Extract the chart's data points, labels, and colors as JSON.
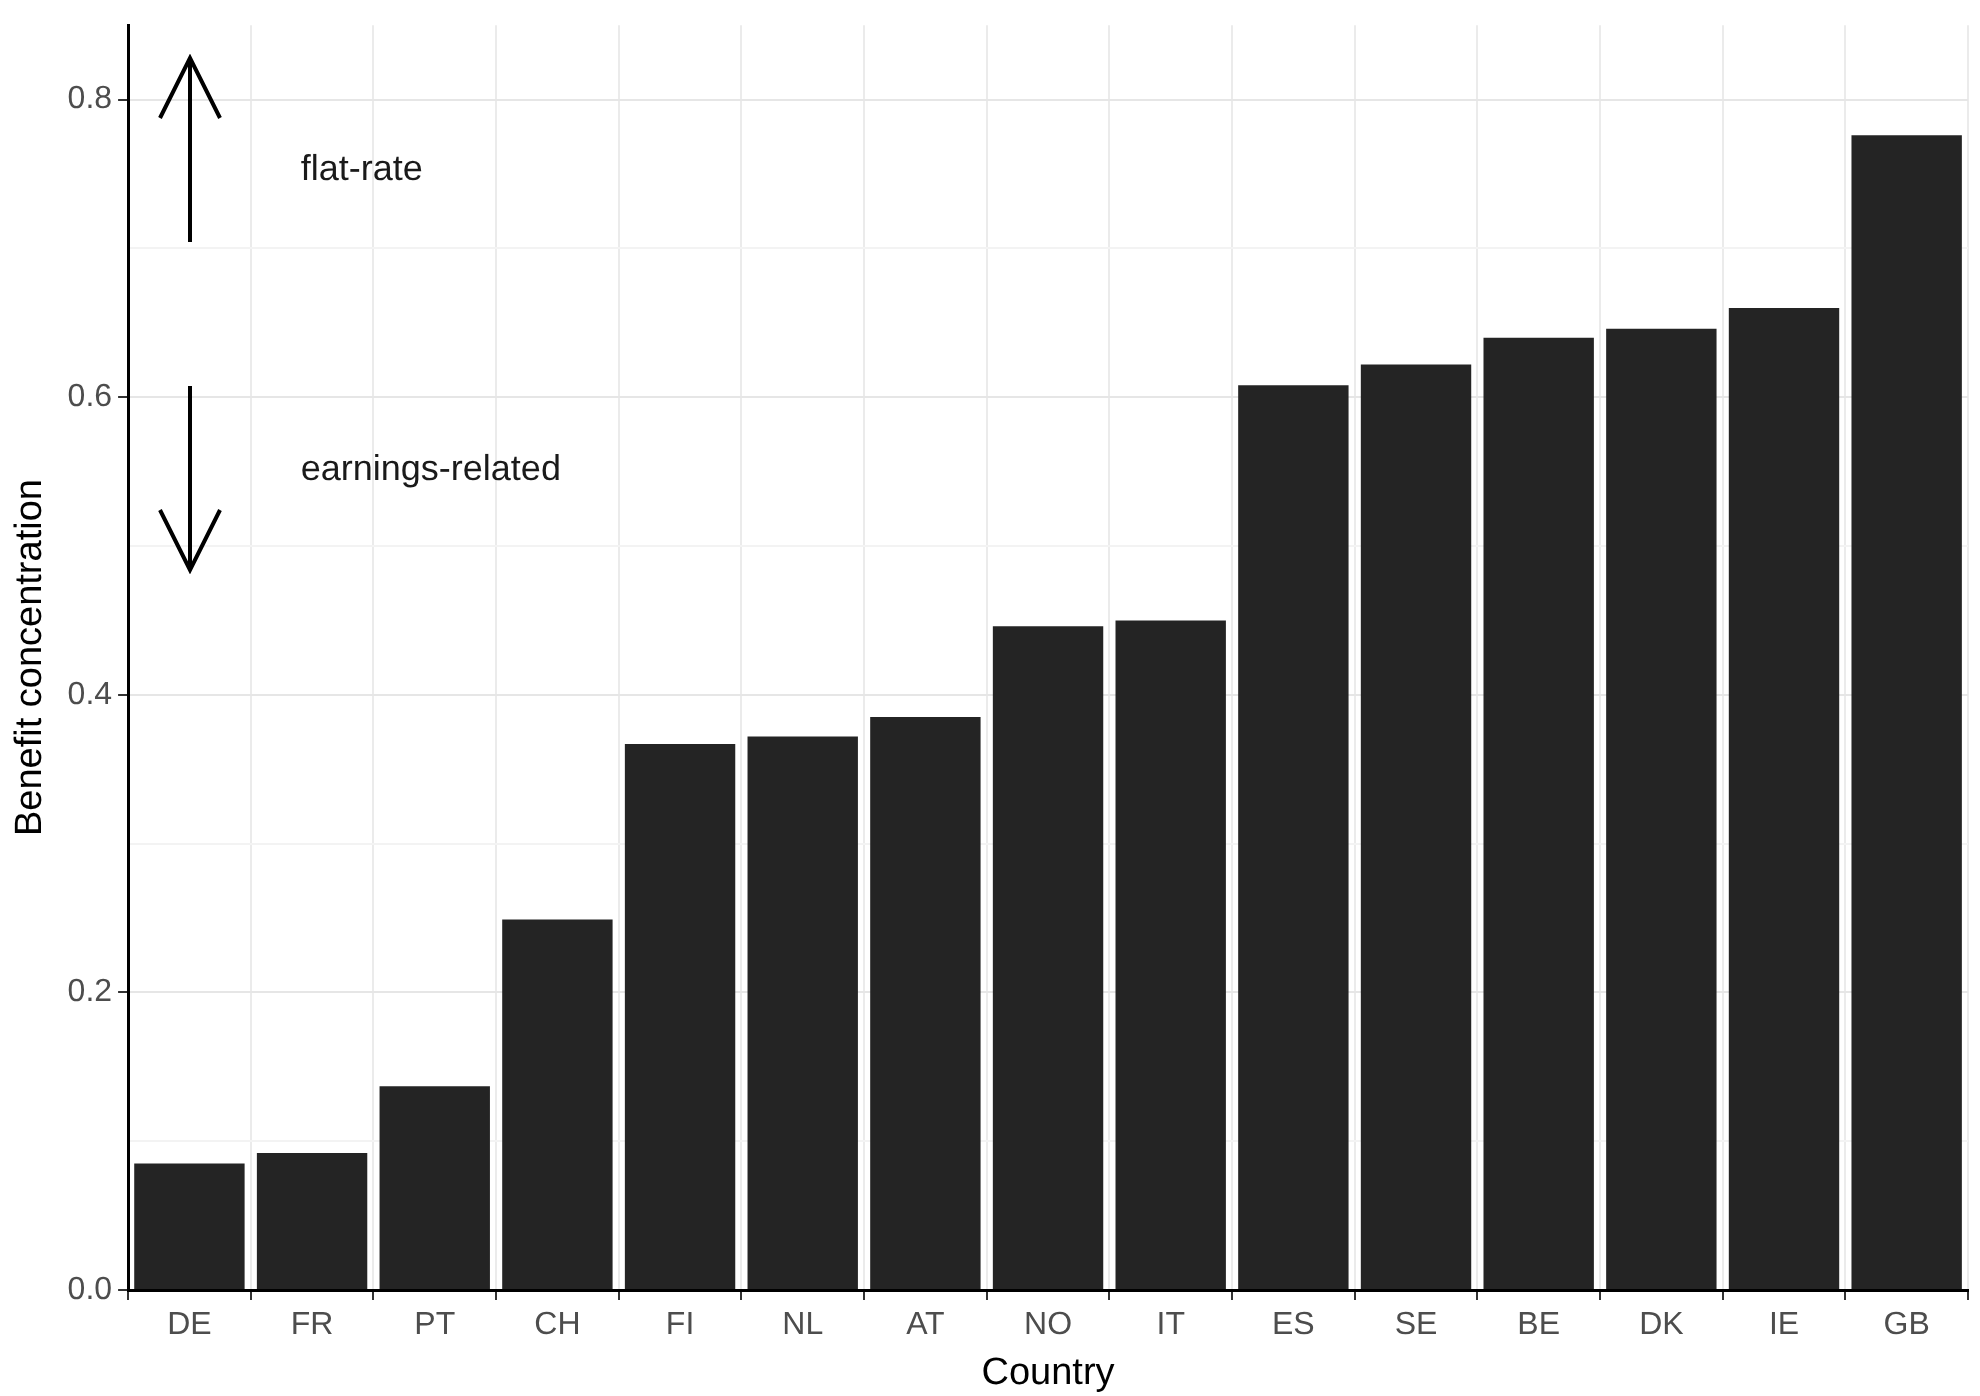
{
  "chart_data": {
    "type": "bar",
    "xlabel": "Country",
    "ylabel": "Benefit concentration",
    "categories": [
      "DE",
      "FR",
      "PT",
      "CH",
      "FI",
      "NL",
      "AT",
      "NO",
      "IT",
      "ES",
      "SE",
      "BE",
      "DK",
      "IE",
      "GB"
    ],
    "values": [
      0.085,
      0.092,
      0.137,
      0.249,
      0.367,
      0.372,
      0.385,
      0.446,
      0.45,
      0.608,
      0.622,
      0.64,
      0.646,
      0.66,
      0.776
    ],
    "color": "#242424",
    "ylim": [
      0,
      0.85
    ],
    "yticks": [
      {
        "value": 0,
        "label": "0.0"
      },
      {
        "value": 0.1,
        "label": null
      },
      0.2,
      {
        "value": 0.3,
        "label": null
      },
      0.4,
      {
        "value": 0.5,
        "label": null
      },
      0.6,
      {
        "value": 0.7,
        "label": null
      },
      0.8
    ],
    "grid": true,
    "annotations": [
      "flat-rate",
      "earnings-related"
    ]
  }
}
